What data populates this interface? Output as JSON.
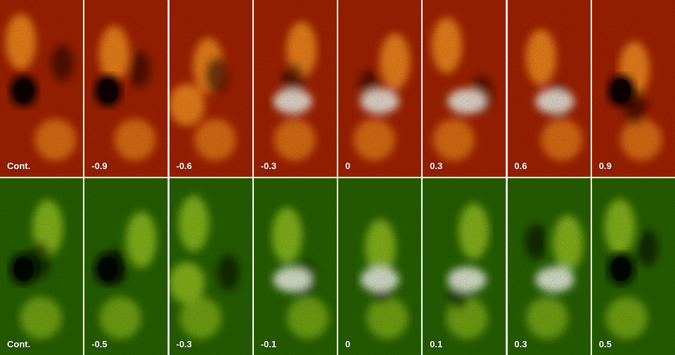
{
  "rows": [
    {
      "name": "top-row",
      "palette": "red",
      "colors": {
        "dark": "#120000",
        "mid": "#b02400",
        "light": "#ff8a1a",
        "bright": "#fff6e8"
      },
      "panels": [
        {
          "label": "Cont.",
          "spot": true
        },
        {
          "label": "-0.9",
          "spot": true
        },
        {
          "label": "-0.6",
          "spot": false
        },
        {
          "label": "-0.3",
          "spot": false
        },
        {
          "label": "0",
          "spot": false
        },
        {
          "label": "0.3",
          "spot": false
        },
        {
          "label": "0.6",
          "spot": false
        },
        {
          "label": "0.9",
          "spot": true
        }
      ]
    },
    {
      "name": "bottom-row",
      "palette": "green",
      "colors": {
        "dark": "#000800",
        "mid": "#2a6a00",
        "light": "#8fc21a",
        "bright": "#f4ffe8"
      },
      "panels": [
        {
          "label": "Cont.",
          "spot": true
        },
        {
          "label": "-0.5",
          "spot": true
        },
        {
          "label": "-0.3",
          "spot": false
        },
        {
          "label": "-0.1",
          "spot": false
        },
        {
          "label": "0",
          "spot": false
        },
        {
          "label": "0.1",
          "spot": false
        },
        {
          "label": "0.3",
          "spot": false
        },
        {
          "label": "0.5",
          "spot": true
        }
      ]
    }
  ]
}
